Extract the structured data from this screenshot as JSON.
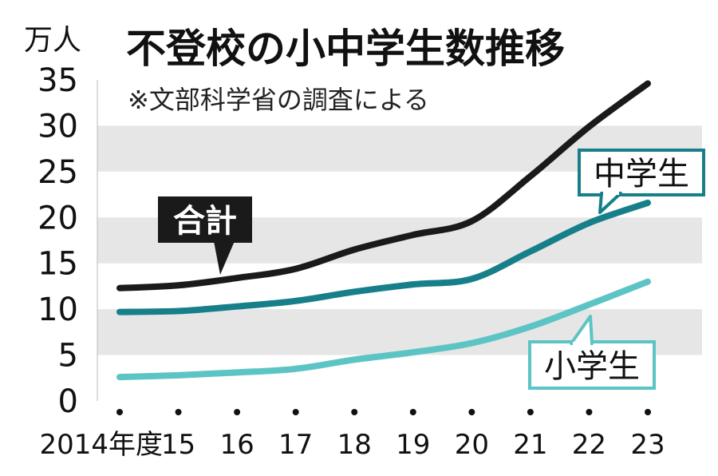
{
  "chart_data": {
    "type": "line",
    "title": "不登校の小中学生数推移",
    "subtitle": "※文部科学省の調査による",
    "unit": "万人",
    "x": [
      "2014年度",
      "15",
      "16",
      "17",
      "18",
      "19",
      "20",
      "21",
      "22",
      "23"
    ],
    "ylim": [
      0,
      35
    ],
    "yticks": [
      "0",
      "5",
      "10",
      "15",
      "20",
      "25",
      "30",
      "35"
    ],
    "grid": "alternating horizontal bands",
    "series": [
      {
        "name": "合計",
        "color": "#1a1a1a",
        "values": [
          12.3,
          12.6,
          13.4,
          14.4,
          16.5,
          18.1,
          19.6,
          24.5,
          29.9,
          34.6
        ]
      },
      {
        "name": "中学生",
        "color": "#167f8a",
        "values": [
          9.7,
          9.8,
          10.3,
          10.9,
          11.9,
          12.7,
          13.3,
          16.3,
          19.4,
          21.6
        ]
      },
      {
        "name": "小学生",
        "color": "#5cc4c4",
        "values": [
          2.6,
          2.8,
          3.1,
          3.5,
          4.5,
          5.3,
          6.3,
          8.1,
          10.5,
          13.0
        ]
      }
    ]
  }
}
